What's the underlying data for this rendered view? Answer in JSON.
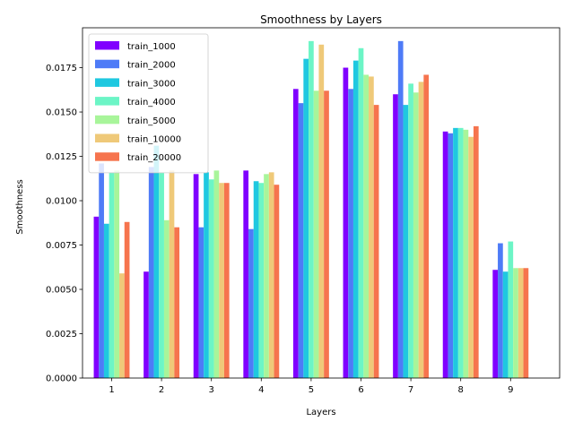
{
  "chart_data": {
    "type": "bar",
    "title": "Smoothness by Layers",
    "xlabel": "Layers",
    "ylabel": "Smoothness",
    "categories": [
      "1",
      "2",
      "3",
      "4",
      "5",
      "6",
      "7",
      "8",
      "9"
    ],
    "ylim": [
      0,
      0.01975
    ],
    "yticks": [
      "0.0000",
      "0.0025",
      "0.0050",
      "0.0075",
      "0.0100",
      "0.0125",
      "0.0150",
      "0.0175"
    ],
    "legend_position": "top-left",
    "grid": false,
    "series": [
      {
        "name": "train_1000",
        "color": "#8000ff",
        "values": [
          0.0091,
          0.006,
          0.0115,
          0.0117,
          0.0163,
          0.0175,
          0.016,
          0.0139,
          0.0061
        ]
      },
      {
        "name": "train_2000",
        "color": "#4e7bf7",
        "values": [
          0.0121,
          0.0119,
          0.0085,
          0.0084,
          0.0155,
          0.0163,
          0.019,
          0.0138,
          0.0076
        ]
      },
      {
        "name": "train_3000",
        "color": "#1fc8e0",
        "values": [
          0.0087,
          0.0131,
          0.0116,
          0.0111,
          0.018,
          0.0179,
          0.0154,
          0.0141,
          0.006
        ]
      },
      {
        "name": "train_4000",
        "color": "#6cf5c6",
        "values": [
          0.0116,
          0.0116,
          0.0112,
          0.011,
          0.019,
          0.0186,
          0.0166,
          0.0141,
          0.0077
        ]
      },
      {
        "name": "train_5000",
        "color": "#a8f59a",
        "values": [
          0.0117,
          0.0089,
          0.0117,
          0.0115,
          0.0162,
          0.0171,
          0.0161,
          0.014,
          0.0062
        ]
      },
      {
        "name": "train_10000",
        "color": "#efc979",
        "values": [
          0.0059,
          0.0117,
          0.011,
          0.0116,
          0.0188,
          0.017,
          0.0167,
          0.0136,
          0.0062
        ]
      },
      {
        "name": "train_20000",
        "color": "#f6744e",
        "values": [
          0.0088,
          0.0085,
          0.011,
          0.0109,
          0.0162,
          0.0154,
          0.0171,
          0.0142,
          0.0062
        ]
      }
    ]
  }
}
